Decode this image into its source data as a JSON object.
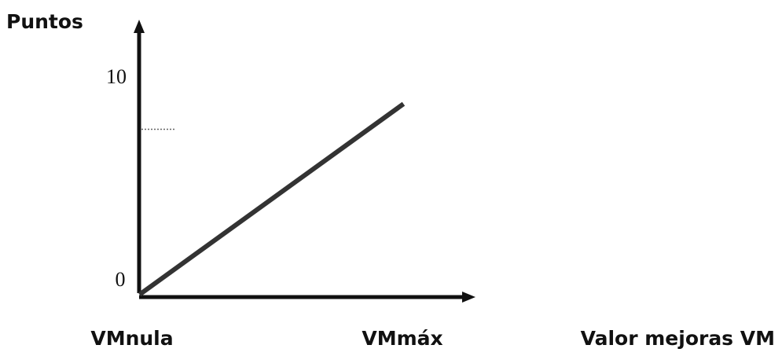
{
  "chart_data": {
    "type": "line",
    "ylabel": "Puntos",
    "xlabel": "Valor mejoras VM",
    "x_tick_labels": [
      "VMnula",
      "VMmáx"
    ],
    "y_tick_labels": [
      "0",
      "10"
    ],
    "ylim": [
      0,
      10
    ],
    "series": [
      {
        "x": [
          "VMnula",
          "VMmáx"
        ],
        "values": [
          0,
          8.6
        ]
      }
    ],
    "reference_level": 7.5,
    "grid": false
  },
  "colors": {
    "axis": "#111111",
    "line": "#333333",
    "dotted": "#666666"
  }
}
